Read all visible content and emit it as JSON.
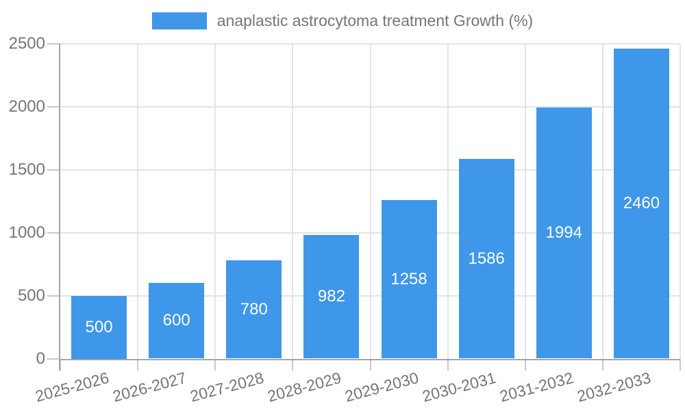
{
  "chart_data": {
    "type": "bar",
    "title": "anaplastic astrocytoma treatment Growth (%)",
    "categories": [
      "2025-2026",
      "2026-2027",
      "2027-2028",
      "2028-2029",
      "2029-2030",
      "2030-2031",
      "2031-2032",
      "2032-2033"
    ],
    "values": [
      500,
      600,
      780,
      982,
      1258,
      1586,
      1994,
      2460
    ],
    "value_labels": [
      "500",
      "600",
      "780",
      "982",
      "1258",
      "1586",
      "1994",
      "2460"
    ],
    "xlabel": "",
    "ylabel": "",
    "ylim": [
      0,
      2500
    ],
    "ytick_labels": [
      "0",
      "500",
      "1000",
      "1500",
      "2000",
      "2500"
    ],
    "grid": true,
    "legend_position": "top",
    "value_labels_position": "center-of-bar"
  },
  "colors": {
    "bar": "#3E97E9",
    "axis_text": "#757575",
    "value_text": "#FFFFFF",
    "grid_line": "#E4E4E4",
    "tick_line": "#C9C9C9",
    "axis_line": "#A5A5A5",
    "background": "#FFFFFF"
  }
}
